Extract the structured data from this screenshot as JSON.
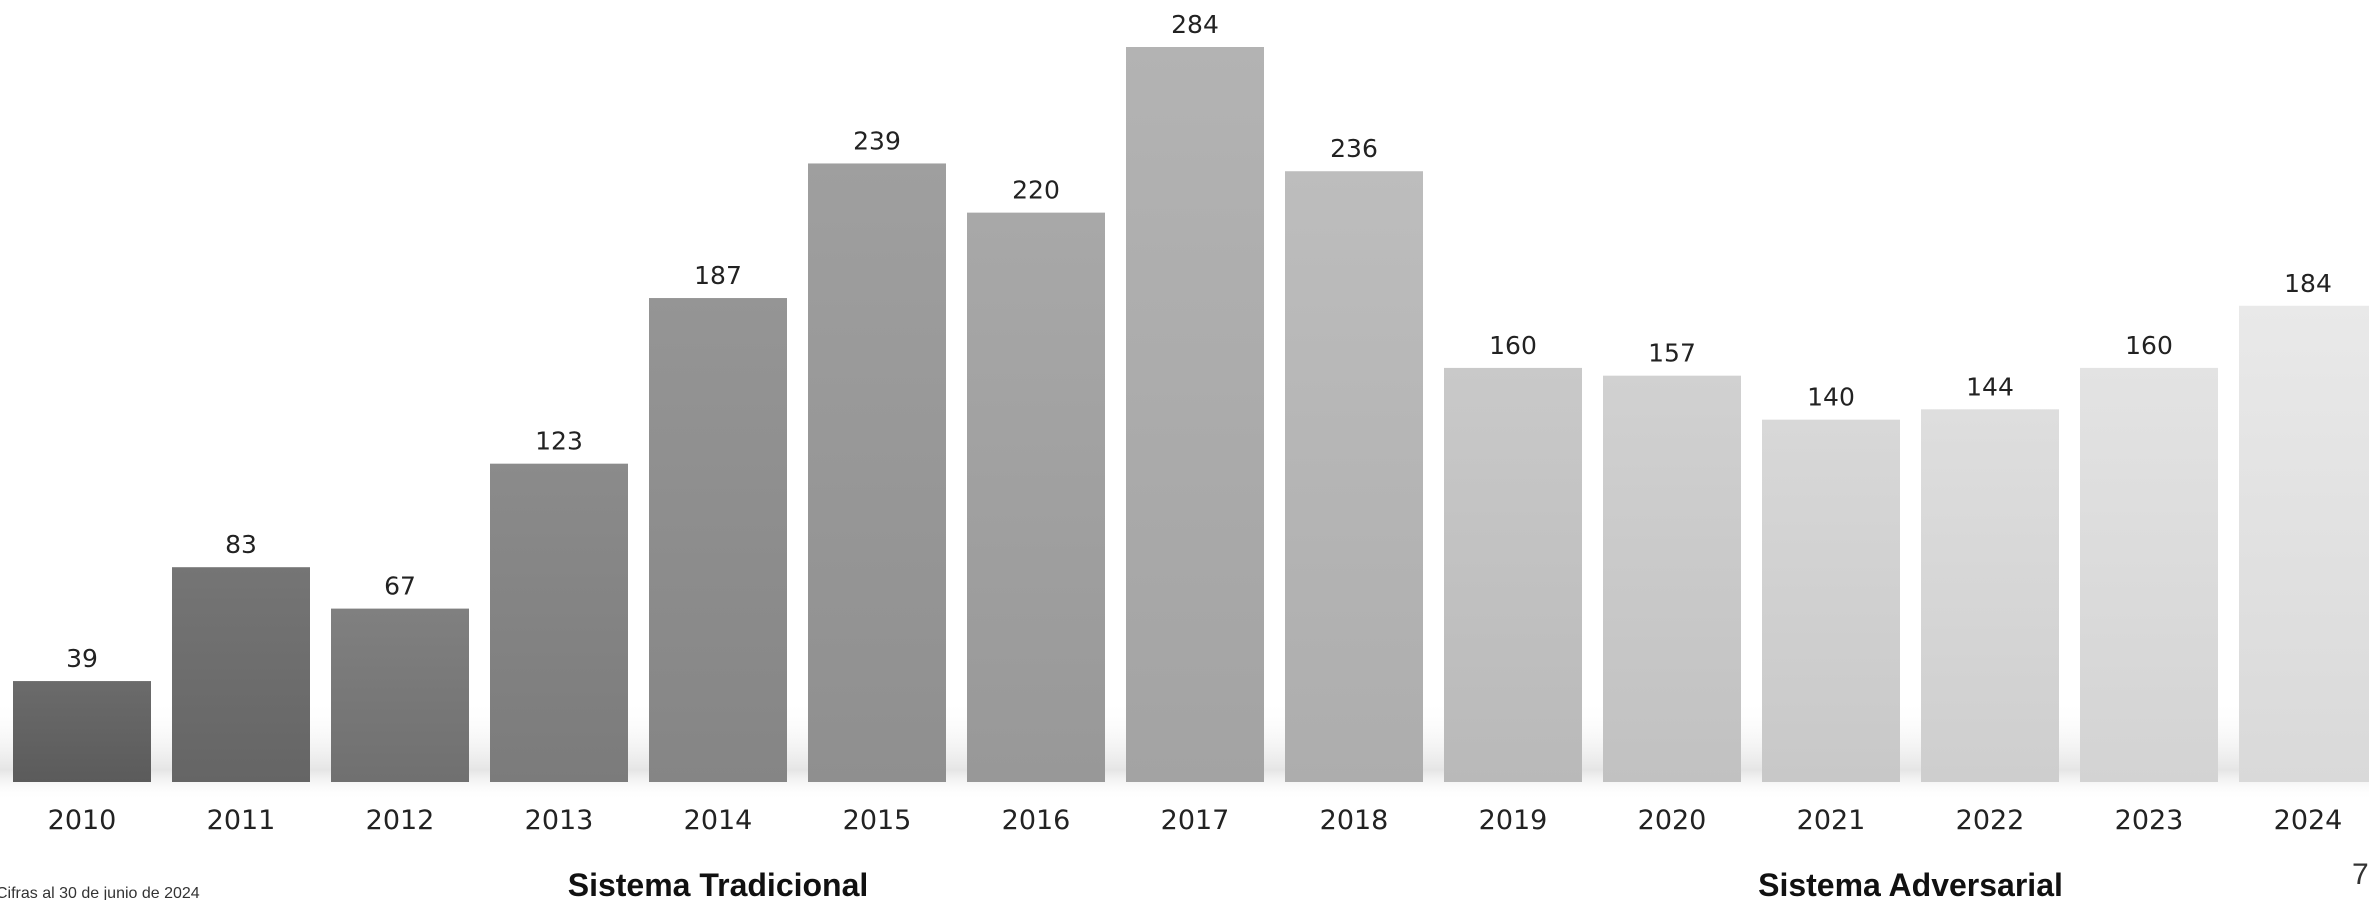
{
  "chart_data": {
    "type": "bar",
    "categories": [
      "2010",
      "2011",
      "2012",
      "2013",
      "2014",
      "2015",
      "2016",
      "2017",
      "2018",
      "2019",
      "2020",
      "2021",
      "2022",
      "2023",
      "2024"
    ],
    "values": [
      39,
      83,
      67,
      123,
      187,
      239,
      220,
      284,
      236,
      160,
      157,
      140,
      144,
      160,
      184
    ],
    "title": "",
    "xlabel": "",
    "ylabel": "",
    "ylim": [
      0,
      284
    ],
    "grid": false,
    "legend": "none",
    "data_labels": true,
    "groups": [
      {
        "label": "Sistema Tradicional",
        "from": "2010",
        "to": "2018"
      },
      {
        "label": "Sistema Adversarial",
        "from": "2019",
        "to": "2024"
      }
    ],
    "bar_colors": [
      "#656565",
      "#6f6f6f",
      "#7a7a7a",
      "#858585",
      "#8f8f8f",
      "#999999",
      "#a2a2a2",
      "#adadad",
      "#b7b7b7",
      "#c3c3c3",
      "#cbcbcb",
      "#d2d2d2",
      "#d8d8d8",
      "#dddddd",
      "#e3e3e3"
    ]
  },
  "footnote": "Cifras al 30 de junio de 2024",
  "page_number": "7"
}
